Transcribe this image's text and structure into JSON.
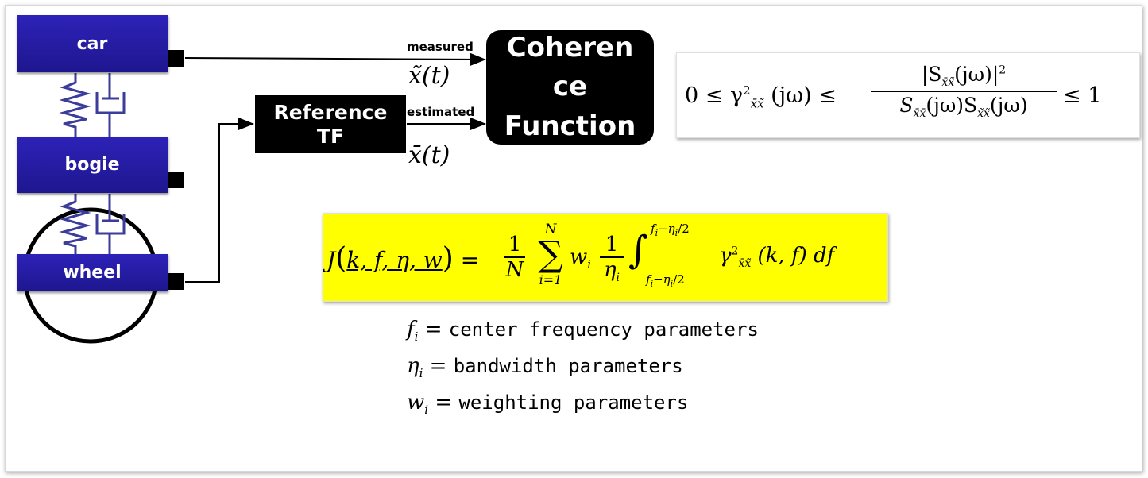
{
  "blocks": {
    "car": "car",
    "bogie": "bogie",
    "wheel": "wheel",
    "reference_tf_line1": "Reference",
    "reference_tf_line2": "TF",
    "coherence_line1": "Coheren",
    "coherence_line2": "ce",
    "coherence_line3": "Function"
  },
  "signals": {
    "measured_label": "measured",
    "measured_symbol": "x̃(t)",
    "estimated_label": "estimated",
    "estimated_symbol": "x̄(t)"
  },
  "coherence_formula": {
    "left": "0 ≤ γ",
    "sq": "2",
    "sub": "x̄x̃",
    "arg": "(jω) ≤",
    "numerator": "|S",
    "num_sub": "x̄x̃",
    "num_arg": "(jω)|",
    "num_sq": "2",
    "den_s1": "S",
    "den_sub1": "x̄x̄",
    "den_arg1": "(jω)S",
    "den_sub2": "x̃x̃",
    "den_arg2": "(jω)",
    "right": "≤ 1"
  },
  "cost_formula": {
    "lhs": "J",
    "args": "k, f, η, w",
    "equals": "=",
    "one": "1",
    "N": "N",
    "sum_top": "N",
    "sum_bottom": "i=1",
    "w_i": "w",
    "sub_i": "i",
    "eta": "η",
    "int_top": "f",
    "int_top_rest": "−η",
    "int_top_tail": "/2",
    "int_bottom": "f",
    "int_bottom_rest": "−η",
    "int_bottom_tail": "/2",
    "gamma": "γ",
    "gamma_sq": "2",
    "gamma_sub": "x̄x̃",
    "tail": "(k, f) df"
  },
  "definitions": [
    {
      "symbol": "f",
      "sub": "i",
      "text": "center frequency parameters"
    },
    {
      "symbol": "η",
      "sub": "i",
      "text": "bandwidth parameters"
    },
    {
      "symbol": "w",
      "sub": "i",
      "text": "weighting parameters"
    }
  ],
  "colors": {
    "block_blue": "#241aa5",
    "spring_blue": "#3c3c9a",
    "highlight_yellow": "#ffff00",
    "box_black": "#000000"
  }
}
